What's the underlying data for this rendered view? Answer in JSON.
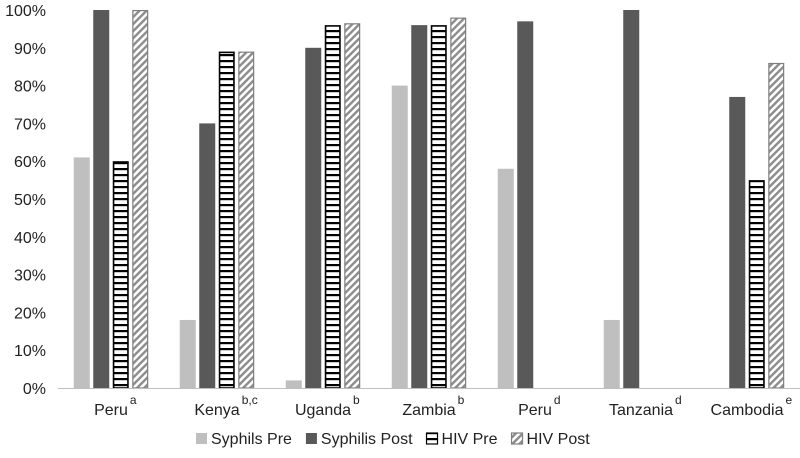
{
  "chart_data": {
    "type": "bar",
    "title": "",
    "xlabel": "",
    "ylabel": "",
    "ylim": [
      0,
      100
    ],
    "yticks": [
      "0%",
      "10%",
      "20%",
      "30%",
      "40%",
      "50%",
      "60%",
      "70%",
      "80%",
      "90%",
      "100%"
    ],
    "grid": false,
    "legend_position": "bottom",
    "categories": [
      {
        "label": "Peru",
        "sup": "a"
      },
      {
        "label": "Kenya",
        "sup": "b,c"
      },
      {
        "label": "Uganda",
        "sup": "b"
      },
      {
        "label": "Zambia",
        "sup": "b"
      },
      {
        "label": "Peru",
        "sup": "d"
      },
      {
        "label": "Tanzania",
        "sup": "d"
      },
      {
        "label": "Cambodia",
        "sup": "e"
      }
    ],
    "series": [
      {
        "name": "Syphils Pre",
        "style": "solid",
        "color": "#bfbfbf",
        "values": [
          61,
          18,
          2,
          80,
          58,
          18,
          null
        ]
      },
      {
        "name": "Syphilis Post",
        "style": "solid",
        "color": "#595959",
        "values": [
          100,
          70,
          90,
          96,
          97,
          100,
          77
        ]
      },
      {
        "name": "HIV Pre",
        "style": "horizontal-stripes",
        "color": "#000000",
        "values": [
          60,
          89,
          96,
          96,
          null,
          null,
          55
        ]
      },
      {
        "name": "HIV Post",
        "style": "diagonal-stripes",
        "color": "#7f7f7f",
        "values": [
          100,
          89,
          96.5,
          98,
          null,
          null,
          86
        ]
      }
    ]
  }
}
